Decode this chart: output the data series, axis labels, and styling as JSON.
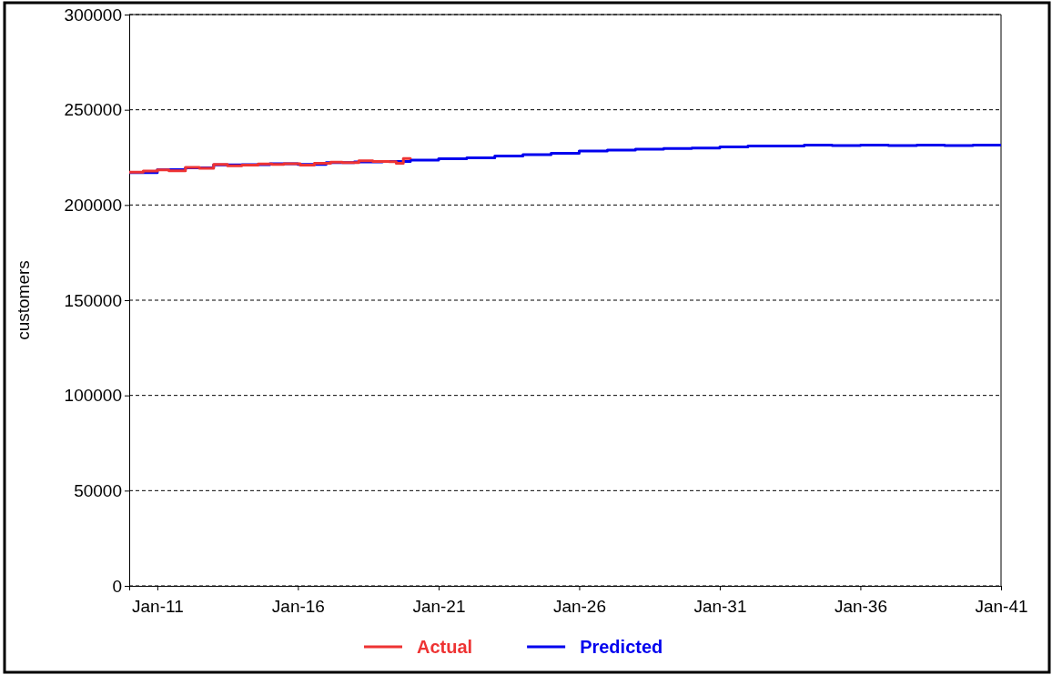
{
  "chart_data": {
    "type": "line",
    "ylabel": "customers",
    "xlim": [
      "2010-01",
      "2041-01"
    ],
    "xticks": [
      {
        "value": "2011-01",
        "label": "Jan-11"
      },
      {
        "value": "2016-01",
        "label": "Jan-16"
      },
      {
        "value": "2021-01",
        "label": "Jan-21"
      },
      {
        "value": "2026-01",
        "label": "Jan-26"
      },
      {
        "value": "2031-01",
        "label": "Jan-31"
      },
      {
        "value": "2036-01",
        "label": "Jan-36"
      },
      {
        "value": "2041-01",
        "label": "Jan-41"
      }
    ],
    "ylim": [
      0,
      300000
    ],
    "yticks": [
      0,
      50000,
      100000,
      150000,
      200000,
      250000,
      300000
    ],
    "grid": "y",
    "legend": "bottom",
    "line_style": "solid",
    "series": [
      {
        "name": "Actual",
        "color": "#ee3333",
        "x": [
          "2010-01",
          "2010-07",
          "2011-01",
          "2011-06",
          "2012-01",
          "2012-07",
          "2013-01",
          "2013-07",
          "2014-01",
          "2014-08",
          "2015-02",
          "2015-07",
          "2016-02",
          "2016-08",
          "2017-03",
          "2017-08",
          "2018-03",
          "2018-09",
          "2019-04",
          "2019-07",
          "2019-10",
          "2020-01"
        ],
        "values": [
          217200,
          217800,
          218400,
          218000,
          219700,
          219300,
          221300,
          220600,
          220900,
          221500,
          221300,
          221700,
          220900,
          221900,
          222500,
          222300,
          223200,
          222800,
          222700,
          221900,
          224400,
          224000
        ]
      },
      {
        "name": "Predicted",
        "color": "#0000ee",
        "x": [
          "2010-01",
          "2011-01",
          "2012-01",
          "2013-01",
          "2014-01",
          "2015-01",
          "2016-01",
          "2017-01",
          "2018-01",
          "2019-01",
          "2020-01",
          "2021-01",
          "2022-01",
          "2023-01",
          "2024-01",
          "2025-01",
          "2026-01",
          "2027-01",
          "2028-01",
          "2029-01",
          "2030-01",
          "2031-01",
          "2032-01",
          "2033-01",
          "2034-01",
          "2035-01",
          "2036-01",
          "2037-01",
          "2038-01",
          "2039-01",
          "2040-01",
          "2041-01"
        ],
        "values": [
          217000,
          218600,
          219500,
          221000,
          221200,
          221600,
          221300,
          222200,
          222600,
          222900,
          223600,
          224300,
          224800,
          225700,
          226400,
          227200,
          228300,
          228800,
          229300,
          229700,
          229900,
          230500,
          231000,
          231000,
          231500,
          231200,
          231500,
          231200,
          231500,
          231200,
          231500,
          231500
        ]
      }
    ]
  }
}
